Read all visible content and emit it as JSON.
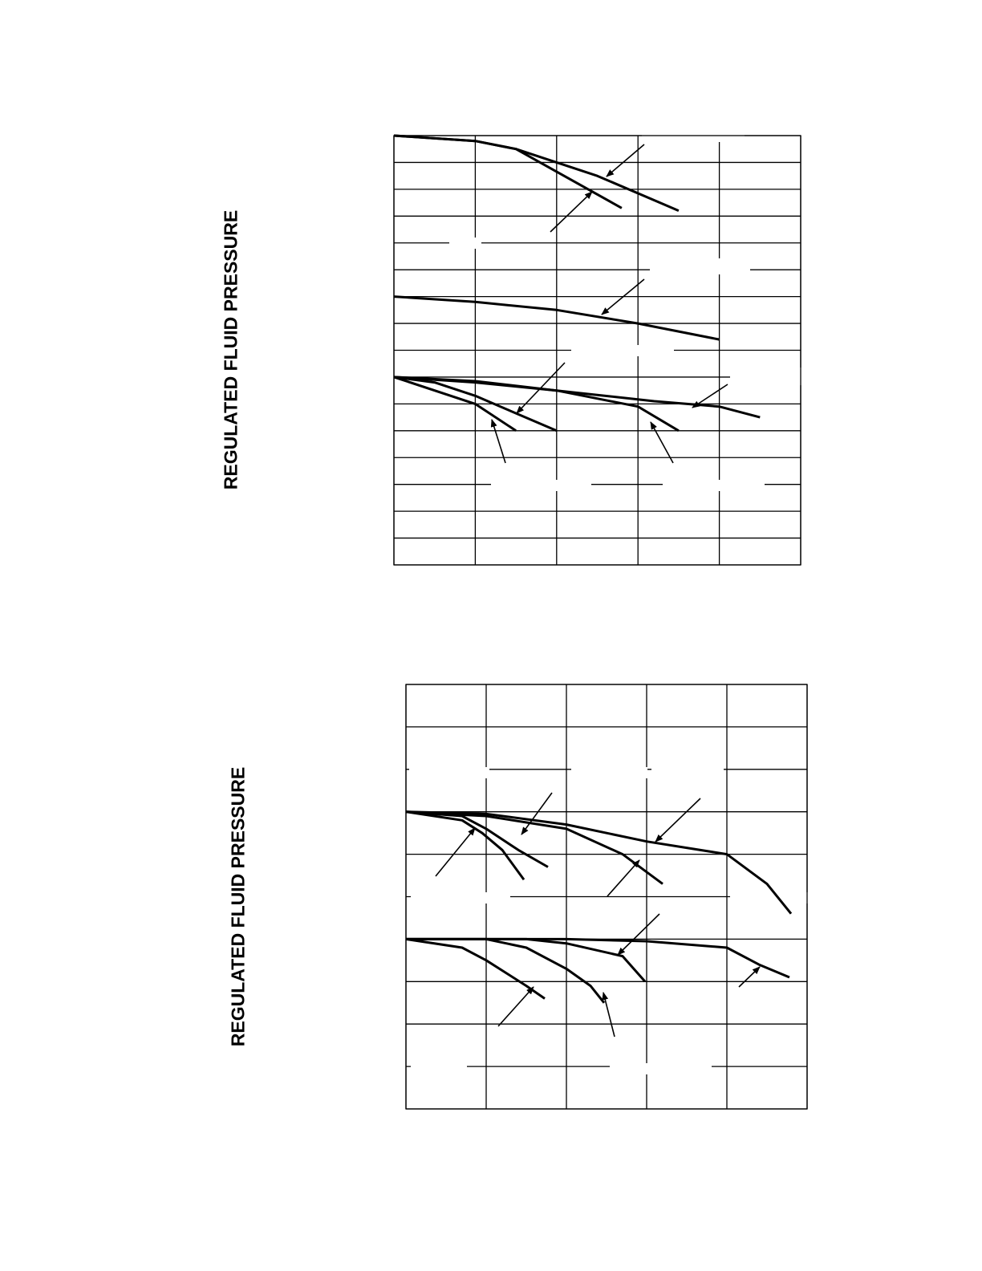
{
  "chart_data": [
    {
      "type": "line",
      "ylabel": "REGULATED FLUID PRESSURE",
      "xlim": [
        0,
        5
      ],
      "ylim": [
        0,
        16
      ],
      "grid": true,
      "series": [
        {
          "x": [
            0,
            1,
            1.5,
            2.5,
            3.5
          ],
          "y": [
            16,
            15.8,
            15.5,
            14.5,
            13.2
          ]
        },
        {
          "x": [
            0,
            1,
            1.5,
            2.8
          ],
          "y": [
            16,
            15.8,
            15.5,
            13.3
          ]
        },
        {
          "x": [
            0,
            1,
            2,
            3,
            4
          ],
          "y": [
            10,
            9.8,
            9.5,
            9.0,
            8.4
          ]
        },
        {
          "x": [
            0,
            1,
            2,
            3.2,
            4,
            4.5
          ],
          "y": [
            7,
            6.8,
            6.5,
            6.1,
            5.9,
            5.5
          ]
        },
        {
          "x": [
            0,
            1,
            2,
            3,
            3.5
          ],
          "y": [
            7,
            6.85,
            6.5,
            5.9,
            5.0
          ]
        },
        {
          "x": [
            0,
            0.5,
            1,
            2
          ],
          "y": [
            7,
            6.8,
            6.3,
            5.0
          ]
        },
        {
          "x": [
            0,
            1,
            1.5
          ],
          "y": [
            7,
            6.0,
            5.0
          ]
        }
      ]
    },
    {
      "type": "line",
      "ylabel": "REGULATED FLUID PRESSURE",
      "xlim": [
        0,
        5
      ],
      "ylim": [
        0,
        10
      ],
      "grid": true,
      "series": [
        {
          "x": [
            0,
            1,
            2,
            3,
            4,
            4.5,
            4.8
          ],
          "y": [
            7,
            6.95,
            6.7,
            6.3,
            6.0,
            5.3,
            4.6
          ]
        },
        {
          "x": [
            0,
            1,
            2,
            2.7,
            3.2
          ],
          "y": [
            7,
            6.9,
            6.6,
            6.0,
            5.3
          ]
        },
        {
          "x": [
            0,
            0.7,
            1.0,
            1.4,
            1.77
          ],
          "y": [
            7,
            6.9,
            6.6,
            6.1,
            5.7
          ]
        },
        {
          "x": [
            0,
            0.7,
            0.95,
            1.2,
            1.47
          ],
          "y": [
            7,
            6.8,
            6.5,
            6.1,
            5.4
          ]
        },
        {
          "x": [
            0,
            1,
            2,
            3,
            4,
            4.4,
            4.78
          ],
          "y": [
            4,
            4,
            4,
            3.95,
            3.8,
            3.4,
            3.1
          ]
        },
        {
          "x": [
            0,
            1,
            1.5,
            2,
            2.7,
            2.98
          ],
          "y": [
            4,
            4,
            4,
            3.9,
            3.6,
            3.0
          ]
        },
        {
          "x": [
            0,
            1,
            1.5,
            2,
            2.3,
            2.47
          ],
          "y": [
            4,
            4,
            3.8,
            3.3,
            2.9,
            2.5
          ]
        },
        {
          "x": [
            0,
            0.7,
            1,
            1.5,
            1.73
          ],
          "y": [
            4,
            3.8,
            3.5,
            2.9,
            2.6
          ]
        }
      ]
    }
  ]
}
